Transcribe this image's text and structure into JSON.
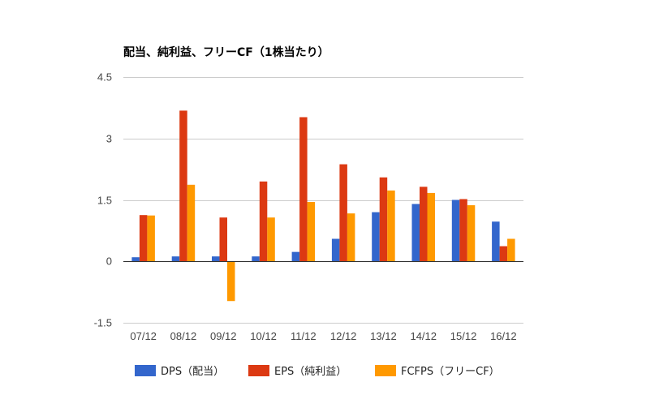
{
  "chart_data": {
    "type": "bar",
    "title": "配当、純利益、フリーCF（1株当たり）",
    "xlabel": "",
    "ylabel": "",
    "categories": [
      "07/12",
      "08/12",
      "09/12",
      "10/12",
      "11/12",
      "12/12",
      "13/12",
      "14/12",
      "15/12",
      "16/12"
    ],
    "series": [
      {
        "name": "DPS（配当）",
        "color": "#3366cc",
        "values": [
          0.1,
          0.12,
          0.12,
          0.12,
          0.23,
          0.55,
          1.2,
          1.4,
          1.5,
          0.97
        ]
      },
      {
        "name": "EPS（純利益）",
        "color": "#dc3912",
        "values": [
          1.13,
          3.68,
          1.07,
          1.95,
          3.52,
          2.37,
          2.05,
          1.82,
          1.52,
          0.37
        ]
      },
      {
        "name": "FCFPS（フリーCF）",
        "color": "#ff9900",
        "values": [
          1.12,
          1.87,
          -0.97,
          1.07,
          1.45,
          1.17,
          1.73,
          1.67,
          1.37,
          0.55
        ]
      }
    ],
    "ylim": [
      -1.5,
      4.5
    ],
    "yticks": [
      4.5,
      3,
      1.5,
      0,
      -1.5
    ],
    "ytick_labels": [
      "4.5",
      "3",
      "1.5",
      "0",
      "-1.5"
    ],
    "grid": true,
    "legend_position": "bottom"
  }
}
